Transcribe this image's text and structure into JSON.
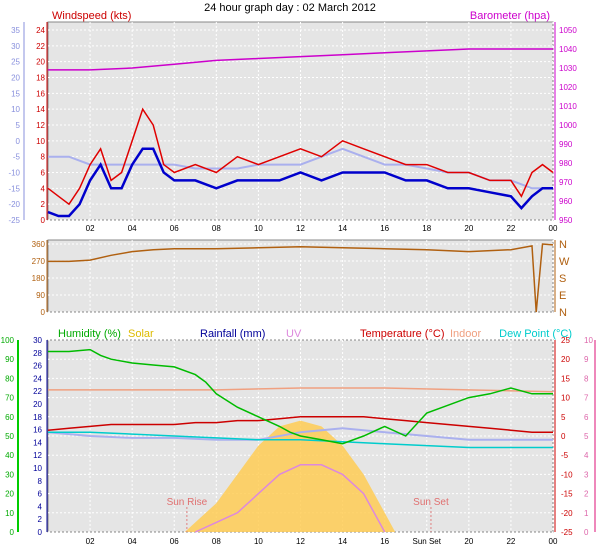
{
  "page_title": "24 hour graph day : 02 March 2012",
  "colors": {
    "wind": "#e00000",
    "gust_avg": "#0000cc",
    "baro": "#cc00cc",
    "temp_blue": "#aab0ee",
    "dir": "#b06010",
    "humidity": "#00bb00",
    "solar": "#ffcc55",
    "rain": "#000099",
    "uv": "#dd88dd",
    "temperature": "#cc0000",
    "indoor": "#f0a080",
    "dewpoint": "#00cccc"
  },
  "chart_data": [
    {
      "type": "line",
      "panel": "wind_baro",
      "labels": {
        "left": "Windspeed (kts)",
        "right": "Barometer (hpa)"
      },
      "x_ticks": [
        "02",
        "04",
        "06",
        "08",
        "10",
        "12",
        "14",
        "16",
        "18",
        "20",
        "22",
        "00"
      ],
      "y_left_ticks": [
        "0",
        "2",
        "4",
        "6",
        "8",
        "10",
        "12",
        "14",
        "16",
        "18",
        "20",
        "22",
        "24"
      ],
      "y_left2_ticks": [
        "-25",
        "-20",
        "-15",
        "-10",
        "-5",
        "0",
        "5",
        "10",
        "15",
        "20",
        "25",
        "30",
        "35"
      ],
      "y_right_ticks": [
        "950",
        "960",
        "970",
        "980",
        "990",
        "1000",
        "1010",
        "1020",
        "1030",
        "1040",
        "1050"
      ],
      "ylim_left": [
        0,
        24
      ],
      "ylim_right": [
        950,
        1050
      ],
      "series": [
        {
          "key": "barometer",
          "x": [
            0,
            2,
            4,
            6,
            8,
            10,
            12,
            14,
            16,
            18,
            20,
            22,
            24
          ],
          "values": [
            1029,
            1029,
            1030,
            1032,
            1034,
            1035,
            1036,
            1037,
            1038,
            1039,
            1040,
            1040,
            1040
          ]
        },
        {
          "key": "windspeed",
          "x": [
            0,
            0.5,
            1,
            1.5,
            2,
            2.5,
            3,
            3.5,
            4,
            4.5,
            5,
            5.5,
            6,
            7,
            8,
            9,
            10,
            11,
            12,
            13,
            14,
            15,
            16,
            17,
            18,
            19,
            20,
            21,
            22,
            22.5,
            23,
            23.5,
            24
          ],
          "values": [
            4,
            3,
            2,
            4,
            7,
            9,
            5,
            6,
            10,
            14,
            12,
            7,
            6,
            7,
            6,
            8,
            7,
            8,
            9,
            8,
            10,
            9,
            8,
            7,
            7,
            6,
            6,
            5,
            5,
            3,
            6,
            7,
            6
          ]
        },
        {
          "key": "wind_average",
          "x": [
            0,
            0.5,
            1,
            1.5,
            2,
            2.5,
            3,
            3.5,
            4,
            4.5,
            5,
            5.5,
            6,
            7,
            8,
            9,
            10,
            11,
            12,
            13,
            14,
            15,
            16,
            17,
            18,
            19,
            20,
            21,
            22,
            22.5,
            23,
            23.5,
            24
          ],
          "values": [
            1,
            0.5,
            0.5,
            2,
            5,
            7,
            4,
            4,
            7,
            9,
            9,
            6,
            5,
            5,
            4,
            5,
            5,
            5,
            6,
            5,
            6,
            6,
            6,
            5,
            5,
            4,
            4,
            3.5,
            3,
            1.5,
            3,
            4,
            4
          ]
        },
        {
          "key": "temperature_scale_line",
          "x": [
            0,
            1,
            2,
            3,
            4,
            5,
            6,
            7,
            8,
            9,
            10,
            11,
            12,
            13,
            14,
            15,
            16,
            17,
            18,
            19,
            20,
            21,
            22,
            23,
            24
          ],
          "values": [
            8,
            8,
            7,
            7,
            7,
            7,
            7,
            6.5,
            6.5,
            6.5,
            7,
            7,
            7,
            8,
            9,
            8,
            7,
            7,
            6.5,
            6,
            6,
            5,
            5,
            4,
            4
          ]
        }
      ]
    },
    {
      "type": "line",
      "panel": "wind_direction",
      "y_left_ticks": [
        "0",
        "90",
        "180",
        "270",
        "360"
      ],
      "y_right_ticks": [
        "N",
        "E",
        "S",
        "W",
        "N"
      ],
      "ylim": [
        0,
        360
      ],
      "series": [
        {
          "key": "direction",
          "x": [
            0,
            1,
            2,
            3,
            4,
            5,
            6,
            8,
            10,
            12,
            14,
            16,
            18,
            20,
            22,
            23,
            23.2,
            23.5,
            24
          ],
          "values": [
            268,
            268,
            275,
            300,
            320,
            330,
            335,
            335,
            340,
            345,
            340,
            335,
            330,
            320,
            330,
            350,
            0,
            360,
            355
          ]
        }
      ]
    },
    {
      "type": "line",
      "panel": "temp_humidity",
      "labels": {
        "humidity": "Humidity (%)",
        "solar": "Solar",
        "rainfall": "Rainfall (mm)",
        "uv": "UV",
        "temperature": "Temperature (°C)",
        "indoor": "Indoor",
        "dewpoint": "Dew Point (°C)"
      },
      "x_ticks": [
        "02",
        "04",
        "06",
        "08",
        "10",
        "12",
        "14",
        "16",
        "Sun Set",
        "20",
        "22",
        "00"
      ],
      "y_hum_ticks": [
        "0",
        "10",
        "20",
        "30",
        "40",
        "50",
        "60",
        "70",
        "80",
        "90",
        "100"
      ],
      "y_rain_ticks": [
        "0",
        "2",
        "4",
        "6",
        "8",
        "10",
        "12",
        "14",
        "16",
        "18",
        "20",
        "22",
        "24",
        "26",
        "28",
        "30"
      ],
      "y_temp_ticks": [
        "-25",
        "-20",
        "-15",
        "-10",
        "-5",
        "0",
        "5",
        "10",
        "15",
        "20",
        "25"
      ],
      "y_uv_ticks": [
        "0",
        "1",
        "2",
        "3",
        "4",
        "5",
        "6",
        "7",
        "8",
        "9",
        "10"
      ],
      "ylim_humidity": [
        0,
        100
      ],
      "ylim_temperature": [
        -25,
        25
      ],
      "annotations": {
        "sunrise": "Sun Rise",
        "sunset": "Sun Set"
      },
      "series": [
        {
          "key": "humidity",
          "x": [
            0,
            1,
            2,
            2.5,
            3,
            4,
            5,
            6,
            7,
            7.5,
            8,
            9,
            10,
            11,
            11.5,
            12,
            13,
            14,
            15,
            16,
            17,
            18,
            19,
            20,
            21,
            22,
            23,
            24
          ],
          "values": [
            94,
            94,
            95,
            92,
            90,
            88,
            87,
            86,
            82,
            78,
            72,
            65,
            60,
            55,
            52,
            50,
            48,
            46,
            50,
            55,
            50,
            62,
            66,
            70,
            72,
            75,
            72,
            72
          ]
        },
        {
          "key": "temperature",
          "x": [
            0,
            1,
            2,
            3,
            4,
            5,
            6,
            7,
            8,
            9,
            10,
            11,
            12,
            13,
            14,
            15,
            16,
            17,
            18,
            19,
            20,
            21,
            22,
            23,
            24
          ],
          "values": [
            1.5,
            2,
            2.5,
            3,
            3,
            3,
            3,
            3.5,
            3.5,
            4,
            4,
            4.5,
            5,
            5,
            5,
            5,
            4.5,
            4,
            3.5,
            3,
            2.5,
            2,
            1.5,
            1,
            1
          ]
        },
        {
          "key": "indoor",
          "x": [
            0,
            4,
            8,
            12,
            16,
            20,
            24
          ],
          "values": [
            12,
            12,
            12,
            12.5,
            12.5,
            12,
            11.5
          ]
        },
        {
          "key": "dewpoint",
          "x": [
            0,
            2,
            4,
            6,
            8,
            10,
            12,
            14,
            16,
            18,
            20,
            22,
            24
          ],
          "values": [
            1,
            1,
            0.5,
            0,
            -0.5,
            -1,
            -1,
            -1.5,
            -2,
            -2.5,
            -3,
            -3,
            -3
          ]
        },
        {
          "key": "temp_blue",
          "x": [
            0,
            2,
            4,
            6,
            8,
            10,
            12,
            14,
            16,
            18,
            20,
            22,
            24
          ],
          "values": [
            1,
            0,
            -0.5,
            -0.5,
            -1,
            -1,
            1,
            2,
            1,
            0,
            -1,
            -1,
            -1
          ]
        },
        {
          "key": "solar",
          "x": [
            6.5,
            7,
            8,
            9,
            10,
            11,
            12,
            13,
            14,
            15,
            16,
            16.5
          ],
          "values": [
            0,
            5,
            15,
            30,
            45,
            55,
            58,
            55,
            45,
            30,
            10,
            0
          ]
        },
        {
          "key": "uv",
          "x": [
            7,
            8,
            9,
            10,
            11,
            12,
            13,
            14,
            15,
            16
          ],
          "values": [
            0,
            0.5,
            1,
            2,
            3,
            3.5,
            3.5,
            3,
            2,
            0
          ]
        }
      ]
    }
  ]
}
